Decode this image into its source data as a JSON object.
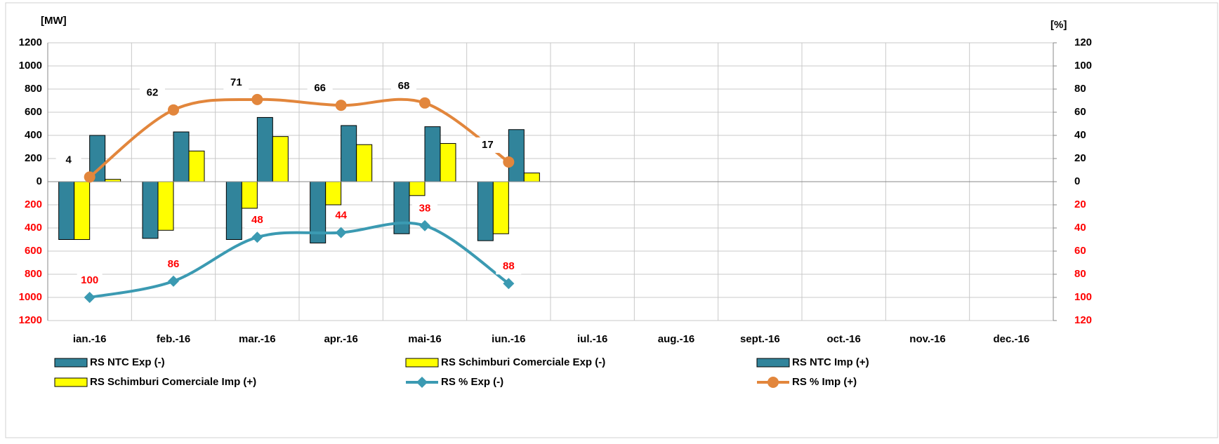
{
  "chart_data": {
    "type": "bar",
    "y_label": "[MW]",
    "y2_label": "[%]",
    "categories": [
      "ian.-16",
      "feb.-16",
      "mar.-16",
      "apr.-16",
      "mai-16",
      "iun.-16",
      "iul.-16",
      "aug.-16",
      "sept.-16",
      "oct.-16",
      "nov.-16",
      "dec.-16"
    ],
    "ylim": [
      -1200,
      1200
    ],
    "yticks": [
      {
        "value": -1200,
        "label": "1200"
      },
      {
        "value": -1000,
        "label": "1000"
      },
      {
        "value": -800,
        "label": "800"
      },
      {
        "value": -600,
        "label": "600"
      },
      {
        "value": -400,
        "label": "400"
      },
      {
        "value": -200,
        "label": "200"
      },
      0,
      200,
      400,
      600,
      800,
      1000,
      1200
    ],
    "y2lim": [
      -120,
      120
    ],
    "y2ticks": [
      {
        "value": -120,
        "label": "120"
      },
      {
        "value": -100,
        "label": "100"
      },
      {
        "value": -80,
        "label": "80"
      },
      {
        "value": -60,
        "label": "60"
      },
      {
        "value": -40,
        "label": "40"
      },
      {
        "value": -20,
        "label": "20"
      },
      0,
      20,
      40,
      60,
      80,
      100,
      120
    ],
    "negative_tick_color": "#ff0000",
    "grid": true,
    "series": [
      {
        "name": "RS NTC Exp (-)",
        "type": "bar",
        "color": "#31849b",
        "values": [
          -500,
          -490,
          -500,
          -530,
          -450,
          -510,
          null,
          null,
          null,
          null,
          null,
          null
        ]
      },
      {
        "name": "RS Schimburi Comerciale Exp (-)",
        "type": "bar",
        "color": "#ffff00",
        "values": [
          -500,
          -420,
          -230,
          -200,
          -120,
          -450,
          null,
          null,
          null,
          null,
          null,
          null
        ]
      },
      {
        "name": "RS NTC Imp (+)",
        "type": "bar",
        "color": "#31849b",
        "values": [
          400,
          430,
          555,
          485,
          475,
          450,
          null,
          null,
          null,
          null,
          null,
          null
        ]
      },
      {
        "name": "RS Schimburi Comerciale Imp (+)",
        "type": "bar",
        "color": "#ffff00",
        "values": [
          20,
          265,
          390,
          320,
          330,
          75,
          null,
          null,
          null,
          null,
          null,
          null
        ]
      },
      {
        "name": "RS % Exp (-)",
        "type": "line",
        "axis": "y2",
        "marker": "diamond",
        "color": "#3b9ab2",
        "label_color": "#ff0000",
        "values": [
          -100,
          -86,
          -48,
          -44,
          -38,
          -88,
          null,
          null,
          null,
          null,
          null,
          null
        ],
        "value_labels": [
          "100",
          "86",
          "48",
          "44",
          "38",
          "88",
          null,
          null,
          null,
          null,
          null,
          null
        ]
      },
      {
        "name": "RS % Imp (+)",
        "type": "line",
        "axis": "y2",
        "marker": "circle",
        "color": "#e2863c",
        "label_color": "#000000",
        "values": [
          4,
          62,
          71,
          66,
          68,
          17,
          null,
          null,
          null,
          null,
          null,
          null
        ]
      }
    ]
  }
}
